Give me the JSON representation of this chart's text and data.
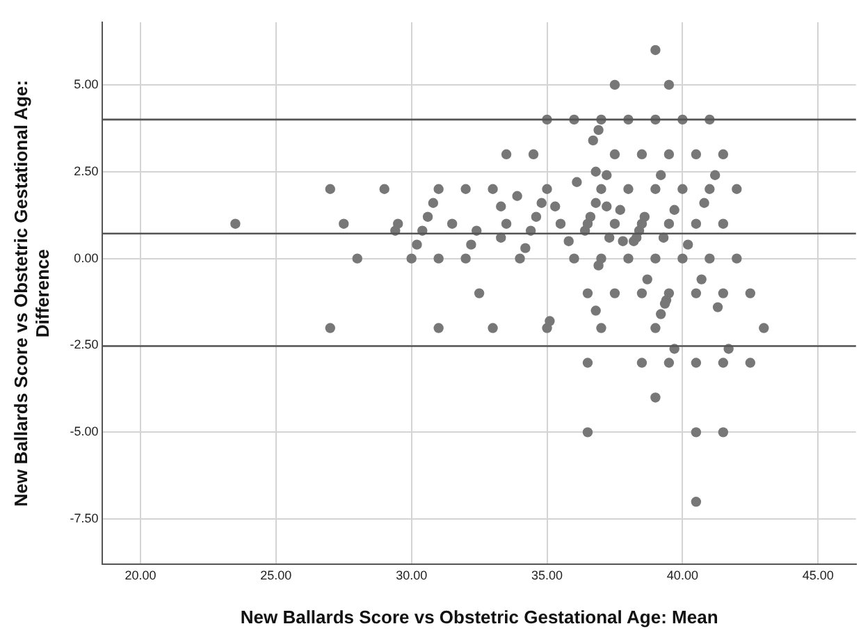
{
  "chart_data": {
    "type": "scatter",
    "xlabel": "New Ballards Score vs Obstetric Gestational Age: Mean",
    "ylabel": "New Ballards Score vs Obstetric Gestational Age: Difference",
    "xlim": [
      18.6,
      46.4
    ],
    "ylim": [
      -8.8,
      6.8
    ],
    "xticks": [
      {
        "value": 20,
        "label": "20.00"
      },
      {
        "value": 25,
        "label": "25.00"
      },
      {
        "value": 30,
        "label": "30.00"
      },
      {
        "value": 35,
        "label": "35.00"
      },
      {
        "value": 40,
        "label": "40.00"
      },
      {
        "value": 45,
        "label": "45.00"
      }
    ],
    "yticks": [
      {
        "value": -7.5,
        "label": "-7.50"
      },
      {
        "value": -5,
        "label": "-5.00"
      },
      {
        "value": -2.5,
        "label": "-2.50"
      },
      {
        "value": 0,
        "label": "0.00"
      },
      {
        "value": 2.5,
        "label": "2.50"
      },
      {
        "value": 5,
        "label": "5.00"
      }
    ],
    "grid": true,
    "marker": "circle",
    "ref_lines": [
      {
        "axis": "y",
        "value": 4.0,
        "color": "#555555"
      },
      {
        "axis": "y",
        "value": 0.72,
        "color": "#555555"
      },
      {
        "axis": "y",
        "value": -2.52,
        "color": "#555555"
      }
    ],
    "series": [
      {
        "color": "#777777",
        "x": [
          23.5,
          27,
          27,
          27.5,
          28,
          29,
          29.4,
          29.5,
          30,
          30.2,
          30.4,
          30.6,
          30.8,
          31,
          31,
          31,
          31.5,
          32,
          32,
          32.2,
          32.4,
          32.5,
          33,
          33,
          33.3,
          33.3,
          33.5,
          33.5,
          33.9,
          34,
          34.2,
          34.4,
          34.5,
          34.6,
          34.8,
          35,
          35,
          35,
          35.1,
          35.3,
          35.5,
          35.8,
          36,
          36,
          36.1,
          36.4,
          36.5,
          36.5,
          36.5,
          36.5,
          36.6,
          36.7,
          36.8,
          36.8,
          36.8,
          36.9,
          36.9,
          37,
          37,
          37,
          37,
          37.2,
          37.2,
          37.3,
          37.5,
          37.5,
          37.5,
          37.5,
          37.7,
          37.8,
          38,
          38,
          38,
          38.2,
          38.3,
          38.4,
          38.5,
          38.5,
          38.5,
          38.5,
          38.6,
          38.7,
          39,
          39,
          39,
          39,
          39,
          39,
          39.2,
          39.2,
          39.3,
          39.35,
          39.4,
          39.5,
          39.5,
          39.5,
          39.5,
          39.5,
          39.7,
          39.7,
          40,
          40,
          40,
          40.2,
          40.5,
          40.5,
          40.5,
          40.5,
          40.5,
          40.5,
          40.7,
          40.8,
          41,
          41,
          41,
          41.2,
          41.3,
          41.5,
          41.5,
          41.5,
          41.5,
          41.5,
          41.7,
          42,
          42,
          42.5,
          42.5,
          43
        ],
        "values": [
          1,
          2,
          -2,
          1,
          0,
          2,
          0.8,
          1,
          0,
          0.4,
          0.8,
          1.2,
          1.6,
          2,
          0,
          -2,
          1,
          2,
          0,
          0.4,
          0.8,
          -1,
          2,
          -2,
          1.5,
          0.6,
          3,
          1,
          1.8,
          0,
          0.3,
          0.8,
          3,
          1.2,
          1.6,
          4,
          2,
          -2,
          -1.8,
          1.5,
          1,
          0.5,
          4,
          0,
          2.2,
          0.8,
          1,
          -1,
          -3,
          -5,
          1.2,
          3.4,
          2.5,
          1.6,
          -1.5,
          3.7,
          -0.2,
          4,
          2,
          0,
          -2,
          2.4,
          1.5,
          0.6,
          5,
          3,
          1,
          -1,
          1.4,
          0.5,
          4,
          2,
          0,
          0.5,
          0.6,
          0.8,
          3,
          1,
          -1,
          -3,
          1.2,
          -0.6,
          6,
          4,
          2,
          0,
          -2,
          -4,
          2.4,
          -1.6,
          0.6,
          -1.3,
          -1.2,
          5,
          3,
          1,
          -1,
          -3,
          1.4,
          -2.6,
          4,
          2,
          0,
          0.4,
          3,
          1,
          -1,
          -3,
          -5,
          -7,
          -0.6,
          1.6,
          4,
          2,
          0,
          2.4,
          -1.4,
          3,
          1,
          -1,
          -3,
          -5,
          -2.6,
          2,
          0,
          -1,
          -3,
          -2
        ]
      }
    ]
  }
}
